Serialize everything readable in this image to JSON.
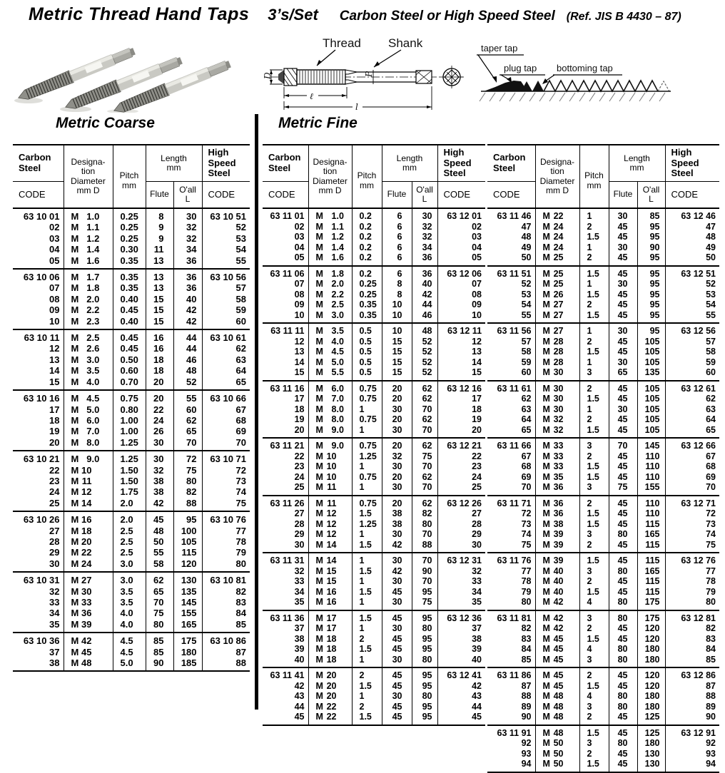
{
  "title": {
    "main": "Metric Thread Hand Taps",
    "set": "3’s/Set",
    "material": "Carbon Steel or  High Speed Steel",
    "ref": "(Ref. JIS B 4430 – 87)"
  },
  "sections": {
    "coarse_title": "Metric Coarse",
    "fine_title": "Metric Fine"
  },
  "header": {
    "carbon_steel": "Carbon\nSteel",
    "code": "CODE",
    "designation": "Designa-\ntion\nDiameter\nmm  D",
    "pitch": "Pitch\nmm",
    "length": "Length\nmm",
    "flute": "Flute",
    "oall": "O'all\nL",
    "high_speed_steel": "High\nSpeed\nSteel"
  },
  "diagrams": {
    "tap_drawing": {
      "thread": "Thread",
      "shank": "Shank",
      "dim_d": "D",
      "dim_p": "P",
      "dim_thread_length": "ℓ",
      "dim_overall_length": "l"
    },
    "tap_types": {
      "taper": "taper tap",
      "plug": "plug tap",
      "bottoming": "bottoming tap"
    }
  },
  "tables": {
    "coarse": {
      "groups": [
        [
          [
            "63 10 01",
            "M 1.0",
            "0.25",
            "8",
            "30",
            "63 10 51"
          ],
          [
            "02",
            "M 1.1",
            "0.25",
            "9",
            "32",
            "52"
          ],
          [
            "03",
            "M 1.2",
            "0.25",
            "9",
            "32",
            "53"
          ],
          [
            "04",
            "M 1.4",
            "0.30",
            "11",
            "34",
            "54"
          ],
          [
            "05",
            "M 1.6",
            "0.35",
            "13",
            "36",
            "55"
          ]
        ],
        [
          [
            "63 10 06",
            "M 1.7",
            "0.35",
            "13",
            "36",
            "63 10 56"
          ],
          [
            "07",
            "M 1.8",
            "0.35",
            "13",
            "36",
            "57"
          ],
          [
            "08",
            "M 2.0",
            "0.40",
            "15",
            "40",
            "58"
          ],
          [
            "09",
            "M 2.2",
            "0.45",
            "15",
            "42",
            "59"
          ],
          [
            "10",
            "M 2.3",
            "0.40",
            "15",
            "42",
            "60"
          ]
        ],
        [
          [
            "63 10 11",
            "M 2.5",
            "0.45",
            "16",
            "44",
            "63 10 61"
          ],
          [
            "12",
            "M 2.6",
            "0.45",
            "16",
            "44",
            "62"
          ],
          [
            "13",
            "M 3.0",
            "0.50",
            "18",
            "46",
            "63"
          ],
          [
            "14",
            "M 3.5",
            "0.60",
            "18",
            "48",
            "64"
          ],
          [
            "15",
            "M 4.0",
            "0.70",
            "20",
            "52",
            "65"
          ]
        ],
        [
          [
            "63 10 16",
            "M 4.5",
            "0.75",
            "20",
            "55",
            "63 10 66"
          ],
          [
            "17",
            "M 5.0",
            "0.80",
            "22",
            "60",
            "67"
          ],
          [
            "18",
            "M 6.0",
            "1.00",
            "24",
            "62",
            "68"
          ],
          [
            "19",
            "M 7.0",
            "1.00",
            "26",
            "65",
            "69"
          ],
          [
            "20",
            "M 8.0",
            "1.25",
            "30",
            "70",
            "70"
          ]
        ],
        [
          [
            "63 10 21",
            "M 9.0",
            "1.25",
            "30",
            "72",
            "63 10 71"
          ],
          [
            "22",
            "M 10",
            "1.50",
            "32",
            "75",
            "72"
          ],
          [
            "23",
            "M 11",
            "1.50",
            "38",
            "80",
            "73"
          ],
          [
            "24",
            "M 12",
            "1.75",
            "38",
            "82",
            "74"
          ],
          [
            "25",
            "M 14",
            "2.0",
            "42",
            "88",
            "75"
          ]
        ],
        [
          [
            "63 10 26",
            "M 16",
            "2.0",
            "45",
            "95",
            "63 10 76"
          ],
          [
            "27",
            "M 18",
            "2.5",
            "48",
            "100",
            "77"
          ],
          [
            "28",
            "M 20",
            "2.5",
            "50",
            "105",
            "78"
          ],
          [
            "29",
            "M 22",
            "2.5",
            "55",
            "115",
            "79"
          ],
          [
            "30",
            "M 24",
            "3.0",
            "58",
            "120",
            "80"
          ]
        ],
        [
          [
            "63 10 31",
            "M 27",
            "3.0",
            "62",
            "130",
            "63 10 81"
          ],
          [
            "32",
            "M 30",
            "3.5",
            "65",
            "135",
            "82"
          ],
          [
            "33",
            "M 33",
            "3.5",
            "70",
            "145",
            "83"
          ],
          [
            "34",
            "M 36",
            "4.0",
            "75",
            "155",
            "84"
          ],
          [
            "35",
            "M 39",
            "4.0",
            "80",
            "165",
            "85"
          ]
        ],
        [
          [
            "63 10 36",
            "M 42",
            "4.5",
            "85",
            "175",
            "63 10 86"
          ],
          [
            "37",
            "M 45",
            "4.5",
            "85",
            "180",
            "87"
          ],
          [
            "38",
            "M 48",
            "5.0",
            "90",
            "185",
            "88"
          ]
        ]
      ]
    },
    "fine_left": {
      "groups": [
        [
          [
            "63 11 01",
            "M 1.0",
            "0.2",
            "6",
            "30",
            "63 12 01"
          ],
          [
            "02",
            "M 1.1",
            "0.2",
            "6",
            "32",
            "02"
          ],
          [
            "03",
            "M 1.2",
            "0.2",
            "6",
            "32",
            "03"
          ],
          [
            "04",
            "M 1.4",
            "0.2",
            "6",
            "34",
            "04"
          ],
          [
            "05",
            "M 1.6",
            "0.2",
            "6",
            "36",
            "05"
          ]
        ],
        [
          [
            "63 11 06",
            "M 1.8",
            "0.2",
            "6",
            "36",
            "63 12 06"
          ],
          [
            "07",
            "M 2.0",
            "0.25",
            "8",
            "40",
            "07"
          ],
          [
            "08",
            "M 2.2",
            "0.25",
            "8",
            "42",
            "08"
          ],
          [
            "09",
            "M 2.5",
            "0.35",
            "10",
            "44",
            "09"
          ],
          [
            "10",
            "M 3.0",
            "0.35",
            "10",
            "46",
            "10"
          ]
        ],
        [
          [
            "63 11 11",
            "M 3.5",
            "0.5",
            "10",
            "48",
            "63 12 11"
          ],
          [
            "12",
            "M 4.0",
            "0.5",
            "15",
            "52",
            "12"
          ],
          [
            "13",
            "M 4.5",
            "0.5",
            "15",
            "52",
            "13"
          ],
          [
            "14",
            "M 5.0",
            "0.5",
            "15",
            "52",
            "14"
          ],
          [
            "15",
            "M 5.5",
            "0.5",
            "15",
            "52",
            "15"
          ]
        ],
        [
          [
            "63 11 16",
            "M 6.0",
            "0.75",
            "20",
            "62",
            "63 12 16"
          ],
          [
            "17",
            "M 7.0",
            "0.75",
            "20",
            "62",
            "17"
          ],
          [
            "18",
            "M 8.0",
            "1",
            "30",
            "70",
            "18"
          ],
          [
            "19",
            "M 8.0",
            "0.75",
            "20",
            "62",
            "19"
          ],
          [
            "20",
            "M 9.0",
            "1",
            "30",
            "70",
            "20"
          ]
        ],
        [
          [
            "63 11 21",
            "M 9.0",
            "0.75",
            "20",
            "62",
            "63 12 21"
          ],
          [
            "22",
            "M 10",
            "1.25",
            "32",
            "75",
            "22"
          ],
          [
            "23",
            "M 10",
            "1",
            "30",
            "70",
            "23"
          ],
          [
            "24",
            "M 10",
            "0.75",
            "20",
            "62",
            "24"
          ],
          [
            "25",
            "M 11",
            "1",
            "30",
            "70",
            "25"
          ]
        ],
        [
          [
            "63 11 26",
            "M 11",
            "0.75",
            "20",
            "62",
            "63 12 26"
          ],
          [
            "27",
            "M 12",
            "1.5",
            "38",
            "82",
            "27"
          ],
          [
            "28",
            "M 12",
            "1.25",
            "38",
            "80",
            "28"
          ],
          [
            "29",
            "M 12",
            "1",
            "30",
            "70",
            "29"
          ],
          [
            "30",
            "M 14",
            "1.5",
            "42",
            "88",
            "30"
          ]
        ],
        [
          [
            "63 11 31",
            "M 14",
            "1",
            "30",
            "70",
            "63 12 31"
          ],
          [
            "32",
            "M 15",
            "1.5",
            "42",
            "90",
            "32"
          ],
          [
            "33",
            "M 15",
            "1",
            "30",
            "70",
            "33"
          ],
          [
            "34",
            "M 16",
            "1.5",
            "45",
            "95",
            "34"
          ],
          [
            "35",
            "M 16",
            "1",
            "30",
            "75",
            "35"
          ]
        ],
        [
          [
            "63 11 36",
            "M 17",
            "1.5",
            "45",
            "95",
            "63 12 36"
          ],
          [
            "37",
            "M 17",
            "1",
            "30",
            "80",
            "37"
          ],
          [
            "38",
            "M 18",
            "2",
            "45",
            "95",
            "38"
          ],
          [
            "39",
            "M 18",
            "1.5",
            "45",
            "95",
            "39"
          ],
          [
            "40",
            "M 18",
            "1",
            "30",
            "80",
            "40"
          ]
        ],
        [
          [
            "63 11 41",
            "M 20",
            "2",
            "45",
            "95",
            "63 12 41"
          ],
          [
            "42",
            "M 20",
            "1.5",
            "45",
            "95",
            "42"
          ],
          [
            "43",
            "M 20",
            "1",
            "30",
            "80",
            "43"
          ],
          [
            "44",
            "M 22",
            "2",
            "45",
            "95",
            "44"
          ],
          [
            "45",
            "M 22",
            "1.5",
            "45",
            "95",
            "45"
          ]
        ]
      ]
    },
    "fine_right": {
      "groups": [
        [
          [
            "63 11 46",
            "M 22",
            "1",
            "30",
            "85",
            "63 12 46"
          ],
          [
            "47",
            "M 24",
            "2",
            "45",
            "95",
            "47"
          ],
          [
            "48",
            "M 24",
            "1.5",
            "45",
            "95",
            "48"
          ],
          [
            "49",
            "M 24",
            "1",
            "30",
            "90",
            "49"
          ],
          [
            "50",
            "M 25",
            "2",
            "45",
            "95",
            "50"
          ]
        ],
        [
          [
            "63 11 51",
            "M 25",
            "1.5",
            "45",
            "95",
            "63 12 51"
          ],
          [
            "52",
            "M 25",
            "1",
            "30",
            "95",
            "52"
          ],
          [
            "53",
            "M 26",
            "1.5",
            "45",
            "95",
            "53"
          ],
          [
            "54",
            "M 27",
            "2",
            "45",
            "95",
            "54"
          ],
          [
            "55",
            "M 27",
            "1.5",
            "45",
            "95",
            "55"
          ]
        ],
        [
          [
            "63 11 56",
            "M 27",
            "1",
            "30",
            "95",
            "63 12 56"
          ],
          [
            "57",
            "M 28",
            "2",
            "45",
            "105",
            "57"
          ],
          [
            "58",
            "M 28",
            "1.5",
            "45",
            "105",
            "58"
          ],
          [
            "59",
            "M 28",
            "1",
            "30",
            "105",
            "59"
          ],
          [
            "60",
            "M 30",
            "3",
            "65",
            "135",
            "60"
          ]
        ],
        [
          [
            "63 11 61",
            "M 30",
            "2",
            "45",
            "105",
            "63 12 61"
          ],
          [
            "62",
            "M 30",
            "1.5",
            "45",
            "105",
            "62"
          ],
          [
            "63",
            "M 30",
            "1",
            "30",
            "105",
            "63"
          ],
          [
            "64",
            "M 32",
            "2",
            "45",
            "105",
            "64"
          ],
          [
            "65",
            "M 32",
            "1.5",
            "45",
            "105",
            "65"
          ]
        ],
        [
          [
            "63 11 66",
            "M 33",
            "3",
            "70",
            "145",
            "63 12 66"
          ],
          [
            "67",
            "M 33",
            "2",
            "45",
            "110",
            "67"
          ],
          [
            "68",
            "M 33",
            "1.5",
            "45",
            "110",
            "68"
          ],
          [
            "69",
            "M 35",
            "1.5",
            "45",
            "110",
            "69"
          ],
          [
            "70",
            "M 36",
            "3",
            "75",
            "155",
            "70"
          ]
        ],
        [
          [
            "63 11 71",
            "M 36",
            "2",
            "45",
            "110",
            "63 12 71"
          ],
          [
            "72",
            "M 36",
            "1.5",
            "45",
            "110",
            "72"
          ],
          [
            "73",
            "M 38",
            "1.5",
            "45",
            "115",
            "73"
          ],
          [
            "74",
            "M 39",
            "3",
            "80",
            "165",
            "74"
          ],
          [
            "75",
            "M 39",
            "2",
            "45",
            "115",
            "75"
          ]
        ],
        [
          [
            "63 11 76",
            "M 39",
            "1.5",
            "45",
            "115",
            "63 12 76"
          ],
          [
            "77",
            "M 40",
            "3",
            "80",
            "165",
            "77"
          ],
          [
            "78",
            "M 40",
            "2",
            "45",
            "115",
            "78"
          ],
          [
            "79",
            "M 40",
            "1.5",
            "45",
            "115",
            "79"
          ],
          [
            "80",
            "M 42",
            "4",
            "80",
            "175",
            "80"
          ]
        ],
        [
          [
            "63 11 81",
            "M 42",
            "3",
            "80",
            "175",
            "63 12 81"
          ],
          [
            "82",
            "M 42",
            "2",
            "45",
            "120",
            "82"
          ],
          [
            "83",
            "M 45",
            "1.5",
            "45",
            "120",
            "83"
          ],
          [
            "84",
            "M 45",
            "4",
            "80",
            "180",
            "84"
          ],
          [
            "85",
            "M 45",
            "3",
            "80",
            "180",
            "85"
          ]
        ],
        [
          [
            "63 11 86",
            "M 45",
            "2",
            "45",
            "120",
            "63 12 86"
          ],
          [
            "87",
            "M 45",
            "1.5",
            "45",
            "120",
            "87"
          ],
          [
            "88",
            "M 48",
            "4",
            "80",
            "180",
            "88"
          ],
          [
            "89",
            "M 48",
            "3",
            "80",
            "180",
            "89"
          ],
          [
            "90",
            "M 48",
            "2",
            "45",
            "125",
            "90"
          ]
        ],
        [
          [
            "63 11 91",
            "M 48",
            "1.5",
            "45",
            "125",
            "63 12 91"
          ],
          [
            "92",
            "M 50",
            "3",
            "80",
            "180",
            "92"
          ],
          [
            "93",
            "M 50",
            "2",
            "45",
            "130",
            "93"
          ],
          [
            "94",
            "M 50",
            "1.5",
            "45",
            "130",
            "94"
          ]
        ]
      ]
    }
  }
}
